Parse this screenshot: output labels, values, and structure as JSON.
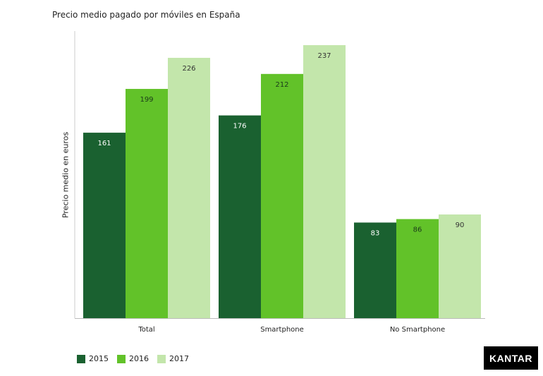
{
  "chart_data": {
    "type": "bar",
    "title": "Precio medio pagado por móviles en España",
    "ylabel": "Precio medio en euros",
    "xlabel": "",
    "categories": [
      "Total",
      "Smartphone",
      "No Smartphone"
    ],
    "series": [
      {
        "name": "2015",
        "values": [
          161,
          176,
          83
        ],
        "color": "#1a6130",
        "label_color": "#ffffff"
      },
      {
        "name": "2016",
        "values": [
          199,
          212,
          86
        ],
        "color": "#62c229",
        "label_color": "#1a3a1a"
      },
      {
        "name": "2017",
        "values": [
          226,
          237,
          90
        ],
        "color": "#c3e6ab",
        "label_color": "#333333"
      }
    ],
    "ylim": [
      0,
      237
    ],
    "grid": false,
    "legend": "bottom-left"
  },
  "brand": {
    "logo_text": "KANTAR"
  }
}
